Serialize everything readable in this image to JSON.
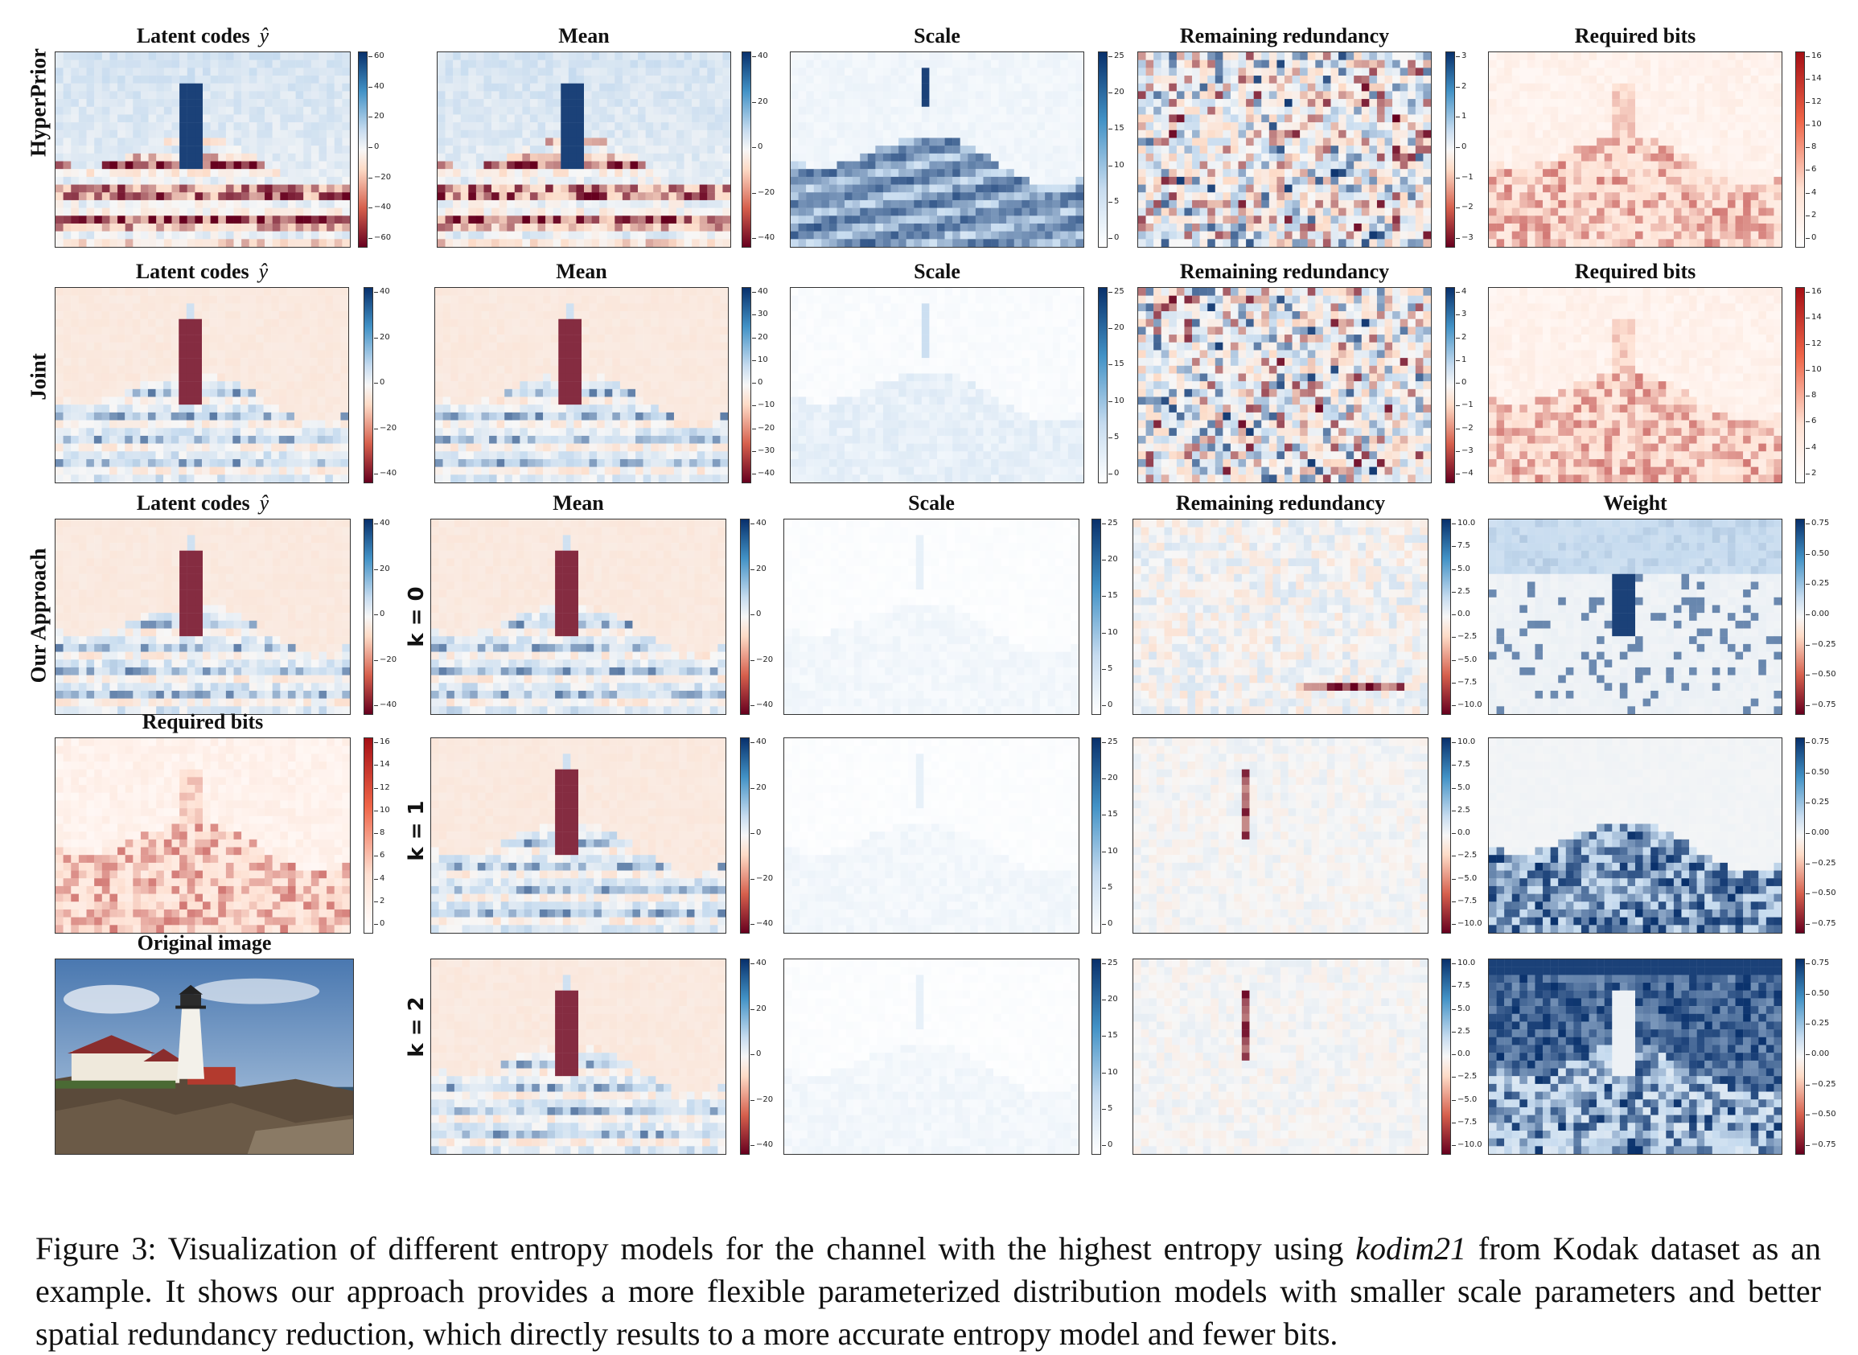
{
  "figure": {
    "row_labels": [
      "HyperPrior",
      "Joint",
      "Our Approach"
    ],
    "k_labels": [
      "k = 0",
      "k = 1",
      "k = 2"
    ],
    "panels": [
      {
        "id": "hp-latent",
        "title": "Latent codes",
        "math": "ŷ",
        "cmap": "div",
        "ticks": [
          "60",
          "40",
          "20",
          "0",
          "−20",
          "−40",
          "−60"
        ],
        "pattern": "latent"
      },
      {
        "id": "hp-mean",
        "title": "Mean",
        "math": "",
        "cmap": "div",
        "ticks": [
          "40",
          "20",
          "0",
          "−20",
          "−40"
        ],
        "pattern": "latent"
      },
      {
        "id": "hp-scale",
        "title": "Scale",
        "math": "",
        "cmap": "blue",
        "ticks": [
          "25",
          "20",
          "15",
          "10",
          "5",
          "0"
        ],
        "pattern": "scale-hp"
      },
      {
        "id": "hp-redund",
        "title": "Remaining redundancy",
        "math": "",
        "cmap": "div",
        "ticks": [
          "3",
          "2",
          "1",
          "0",
          "−1",
          "−2",
          "−3"
        ],
        "pattern": "noise"
      },
      {
        "id": "hp-bits",
        "title": "Required bits",
        "math": "",
        "cmap": "red",
        "ticks": [
          "16",
          "14",
          "12",
          "10",
          "8",
          "6",
          "4",
          "2",
          "0"
        ],
        "pattern": "bits"
      },
      {
        "id": "jt-latent",
        "title": "Latent codes",
        "math": "ŷ",
        "cmap": "div",
        "ticks": [
          "40",
          "20",
          "0",
          "−20",
          "−40"
        ],
        "pattern": "latent2"
      },
      {
        "id": "jt-mean",
        "title": "Mean",
        "math": "",
        "cmap": "div",
        "ticks": [
          "40",
          "30",
          "20",
          "10",
          "0",
          "−10",
          "−20",
          "−30",
          "−40"
        ],
        "pattern": "latent2"
      },
      {
        "id": "jt-scale",
        "title": "Scale",
        "math": "",
        "cmap": "blue",
        "ticks": [
          "25",
          "20",
          "15",
          "10",
          "5",
          "0"
        ],
        "pattern": "scale-jt"
      },
      {
        "id": "jt-redund",
        "title": "Remaining redundancy",
        "math": "",
        "cmap": "div",
        "ticks": [
          "4",
          "3",
          "2",
          "1",
          "0",
          "−1",
          "−2",
          "−3",
          "−4"
        ],
        "pattern": "noise"
      },
      {
        "id": "jt-bits",
        "title": "Required bits",
        "math": "",
        "cmap": "red",
        "ticks": [
          "16",
          "14",
          "12",
          "10",
          "8",
          "6",
          "4",
          "2"
        ],
        "pattern": "bits"
      },
      {
        "id": "oa-latent",
        "title": "Latent codes",
        "math": "ŷ",
        "cmap": "div",
        "ticks": [
          "40",
          "20",
          "0",
          "−20",
          "−40"
        ],
        "pattern": "latent2"
      },
      {
        "id": "oa-mean0",
        "title": "Mean",
        "math": "",
        "cmap": "div",
        "ticks": [
          "40",
          "20",
          "0",
          "−20",
          "−40"
        ],
        "pattern": "latent2"
      },
      {
        "id": "oa-scale0",
        "title": "Scale",
        "math": "",
        "cmap": "blue",
        "ticks": [
          "25",
          "20",
          "15",
          "10",
          "5",
          "0"
        ],
        "pattern": "scale-low"
      },
      {
        "id": "oa-redund0",
        "title": "Remaining redundancy",
        "math": "",
        "cmap": "div",
        "ticks": [
          "10.0",
          "7.5",
          "5.0",
          "2.5",
          "0.0",
          "−2.5",
          "−5.0",
          "−7.5",
          "−10.0"
        ],
        "pattern": "noise-soft"
      },
      {
        "id": "oa-weight0",
        "title": "Weight",
        "math": "",
        "cmap": "div",
        "ticks": [
          "0.75",
          "0.50",
          "0.25",
          "0.00",
          "−0.25",
          "−0.50",
          "−0.75"
        ],
        "pattern": "weight0"
      },
      {
        "id": "oa-bits",
        "title": "Required bits",
        "math": "",
        "cmap": "red",
        "ticks": [
          "16",
          "14",
          "12",
          "10",
          "8",
          "6",
          "4",
          "2",
          "0"
        ],
        "pattern": "bits"
      },
      {
        "id": "oa-mean1",
        "title": "",
        "math": "",
        "cmap": "div",
        "ticks": [
          "40",
          "20",
          "0",
          "−20",
          "−40"
        ],
        "pattern": "latent2"
      },
      {
        "id": "oa-scale1",
        "title": "",
        "math": "",
        "cmap": "blue",
        "ticks": [
          "25",
          "20",
          "15",
          "10",
          "5",
          "0"
        ],
        "pattern": "scale-low"
      },
      {
        "id": "oa-redund1",
        "title": "",
        "math": "",
        "cmap": "div",
        "ticks": [
          "10.0",
          "7.5",
          "5.0",
          "2.5",
          "0.0",
          "−2.5",
          "−5.0",
          "−7.5",
          "−10.0"
        ],
        "pattern": "noise-faint"
      },
      {
        "id": "oa-weight1",
        "title": "",
        "math": "",
        "cmap": "div",
        "ticks": [
          "0.75",
          "0.50",
          "0.25",
          "0.00",
          "−0.25",
          "−0.50",
          "−0.75"
        ],
        "pattern": "weight1"
      },
      {
        "id": "oa-original",
        "title": "Original image",
        "math": "",
        "cmap": "none",
        "ticks": [],
        "pattern": "photo"
      },
      {
        "id": "oa-mean2",
        "title": "",
        "math": "",
        "cmap": "div",
        "ticks": [
          "40",
          "20",
          "0",
          "−20",
          "−40"
        ],
        "pattern": "latent2"
      },
      {
        "id": "oa-scale2",
        "title": "",
        "math": "",
        "cmap": "blue",
        "ticks": [
          "25",
          "20",
          "15",
          "10",
          "5",
          "0"
        ],
        "pattern": "scale-low"
      },
      {
        "id": "oa-redund2",
        "title": "",
        "math": "",
        "cmap": "div",
        "ticks": [
          "10.0",
          "7.5",
          "5.0",
          "2.5",
          "0.0",
          "−2.5",
          "−5.0",
          "−7.5",
          "−10.0"
        ],
        "pattern": "noise-faint"
      },
      {
        "id": "oa-weight2",
        "title": "",
        "math": "",
        "cmap": "div",
        "ticks": [
          "0.75",
          "0.50",
          "0.25",
          "0.00",
          "−0.25",
          "−0.50",
          "−0.75"
        ],
        "pattern": "weight2"
      }
    ]
  },
  "caption": {
    "prefix": "Figure 3:  Visualization of different entropy models for the channel with the highest entropy using ",
    "dataset": "kodim21",
    "suffix": " from Kodak dataset as an example. It shows our approach provides a more flexible parameterized distribution models with smaller scale parameters and better spatial redundancy reduction, which directly results to a more accurate entropy model and fewer bits."
  },
  "colors": {
    "div_pos": "#08306b",
    "div_neg": "#67001f",
    "blue_max": "#08306b",
    "red_max": "#a50f15",
    "neutral": "#f7f7f7"
  }
}
